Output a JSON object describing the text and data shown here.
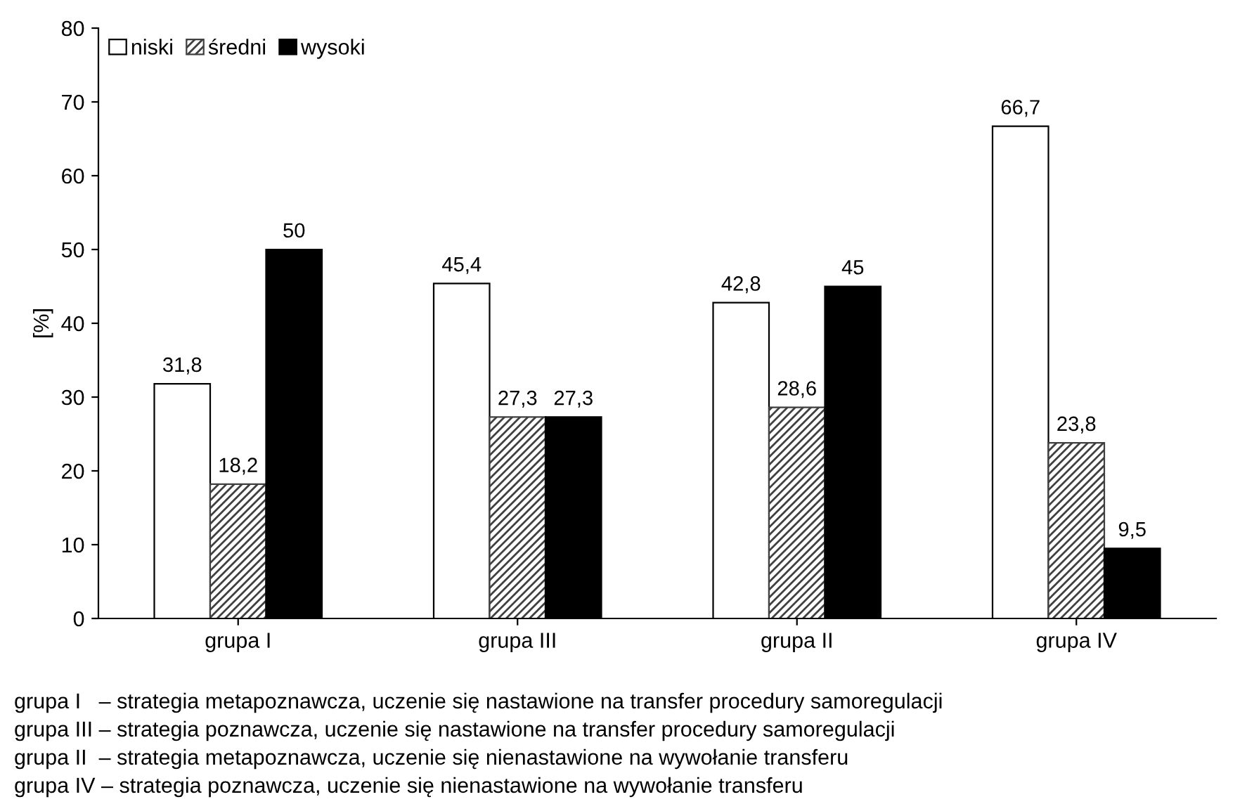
{
  "chart_data": {
    "type": "bar",
    "ylabel": "[%]",
    "categories": [
      "grupa I",
      "grupa III",
      "grupa II",
      "grupa IV"
    ],
    "series": [
      {
        "name": "niski",
        "color": "#ffffff",
        "values": [
          31.8,
          45.4,
          42.8,
          66.7
        ],
        "value_labels": [
          "31,8",
          "45,4",
          "42,8",
          "66,7"
        ]
      },
      {
        "name": "średni",
        "color": "#404040",
        "values": [
          18.2,
          27.3,
          28.6,
          23.8
        ],
        "value_labels": [
          "18,2",
          "27,3",
          "28,6",
          "23,8"
        ]
      },
      {
        "name": "wysoki",
        "color": "#000000",
        "values": [
          50,
          27.3,
          45,
          9.5
        ],
        "value_labels": [
          "50",
          "27,3",
          "45",
          "9,5"
        ]
      }
    ],
    "ylim": [
      0,
      80
    ],
    "yticks": [
      0,
      10,
      20,
      30,
      40,
      50,
      60,
      70,
      80
    ],
    "grid": false,
    "legend": "top left",
    "annotations": [
      "grupa I   – strategia metapoznawcza, uczenie się nastawione na transfer procedury samoregulacji",
      "grupa III – strategia poznawcza, uczenie się nastawione na transfer procedury samoregulacji",
      "grupa II  – strategia metapoznawcza, uczenie się nienastawione na wywołanie transferu",
      "grupa IV – strategia poznawcza, uczenie się nienastawione na wywołanie transferu"
    ]
  }
}
